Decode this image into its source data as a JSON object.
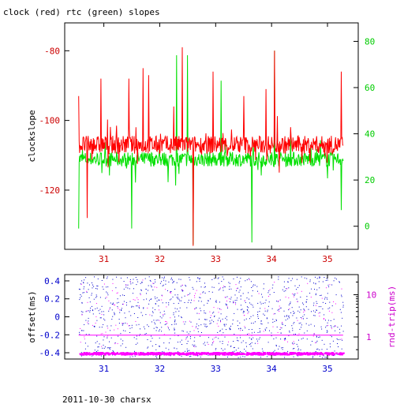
{
  "title": "clock (red) rtc (green) slopes",
  "footer": "2011-10-30 charsx",
  "colors": {
    "clock": "#ff0000",
    "rtc": "#00e000",
    "offset": "#0000cc",
    "rtt": "#ff00ff",
    "axis_left_top": "#cc0000",
    "axis_right_top": "#00cc00",
    "axis_bottom_x": "#0000cc",
    "axis_bottom_left": "#0000cc",
    "axis_bottom_right": "#cc00cc"
  },
  "chart_data": [
    {
      "type": "line",
      "name": "slopes",
      "ylabel": "clockslope",
      "x_ticks": [
        "31",
        "32",
        "33",
        "34",
        "35"
      ],
      "x_tick_values": [
        31,
        32,
        33,
        34,
        35
      ],
      "xlim": [
        30.3,
        35.55
      ],
      "left_axis": {
        "lim": [
          -137,
          -72
        ],
        "ticks": [
          -120,
          -100,
          -80
        ],
        "tick_labels": [
          "-120",
          "-100",
          "-80"
        ]
      },
      "right_axis": {
        "lim": [
          -10,
          88
        ],
        "ticks": [
          0,
          20,
          40,
          60,
          80
        ],
        "tick_labels": [
          "0",
          "20",
          "40",
          "60",
          "80"
        ]
      },
      "series": [
        {
          "name": "clock",
          "axis": "left",
          "baseline": -107,
          "spikes": [
            {
              "x": 30.55,
              "y": -93
            },
            {
              "x": 30.7,
              "y": -128
            },
            {
              "x": 30.95,
              "y": -88
            },
            {
              "x": 31.45,
              "y": -88
            },
            {
              "x": 31.7,
              "y": -85
            },
            {
              "x": 31.8,
              "y": -87
            },
            {
              "x": 32.25,
              "y": -96
            },
            {
              "x": 32.4,
              "y": -79
            },
            {
              "x": 32.6,
              "y": -136
            },
            {
              "x": 32.95,
              "y": -86
            },
            {
              "x": 33.5,
              "y": -93
            },
            {
              "x": 33.9,
              "y": -91
            },
            {
              "x": 34.05,
              "y": -80
            },
            {
              "x": 35.25,
              "y": -86
            }
          ]
        },
        {
          "name": "rtc",
          "axis": "right",
          "baseline": 29,
          "spikes": [
            {
              "x": 30.55,
              "y": -1
            },
            {
              "x": 31.5,
              "y": -1
            },
            {
              "x": 32.3,
              "y": 74
            },
            {
              "x": 32.5,
              "y": 74
            },
            {
              "x": 32.6,
              "y": -8
            },
            {
              "x": 33.1,
              "y": 63
            },
            {
              "x": 33.65,
              "y": -7
            },
            {
              "x": 34.05,
              "y": 76
            },
            {
              "x": 35.25,
              "y": 7
            }
          ]
        }
      ]
    },
    {
      "type": "scatter",
      "name": "offset-rtt",
      "ylabel_left": "offset(ms)",
      "ylabel_right": "rnd-trip(ms)",
      "x_ticks": [
        "31",
        "32",
        "33",
        "34",
        "35"
      ],
      "x_tick_values": [
        31,
        32,
        33,
        34,
        35
      ],
      "xlim": [
        30.3,
        35.55
      ],
      "left_axis": {
        "lim": [
          -0.47,
          0.47
        ],
        "ticks": [
          -0.4,
          -0.2,
          0,
          0.2,
          0.4
        ],
        "tick_labels": [
          "-0.4",
          "-0.2",
          "0",
          "0.2",
          "0.4"
        ]
      },
      "right_axis": {
        "lim": [
          0.3,
          30
        ],
        "log": true,
        "ticks": [
          1,
          10
        ],
        "tick_labels": [
          "1",
          "10"
        ]
      },
      "series": [
        {
          "name": "offset",
          "axis": "left",
          "range": [
            -0.45,
            0.45
          ]
        },
        {
          "name": "rtt",
          "axis": "right",
          "band": 0.4,
          "line": 1.1
        }
      ]
    }
  ]
}
